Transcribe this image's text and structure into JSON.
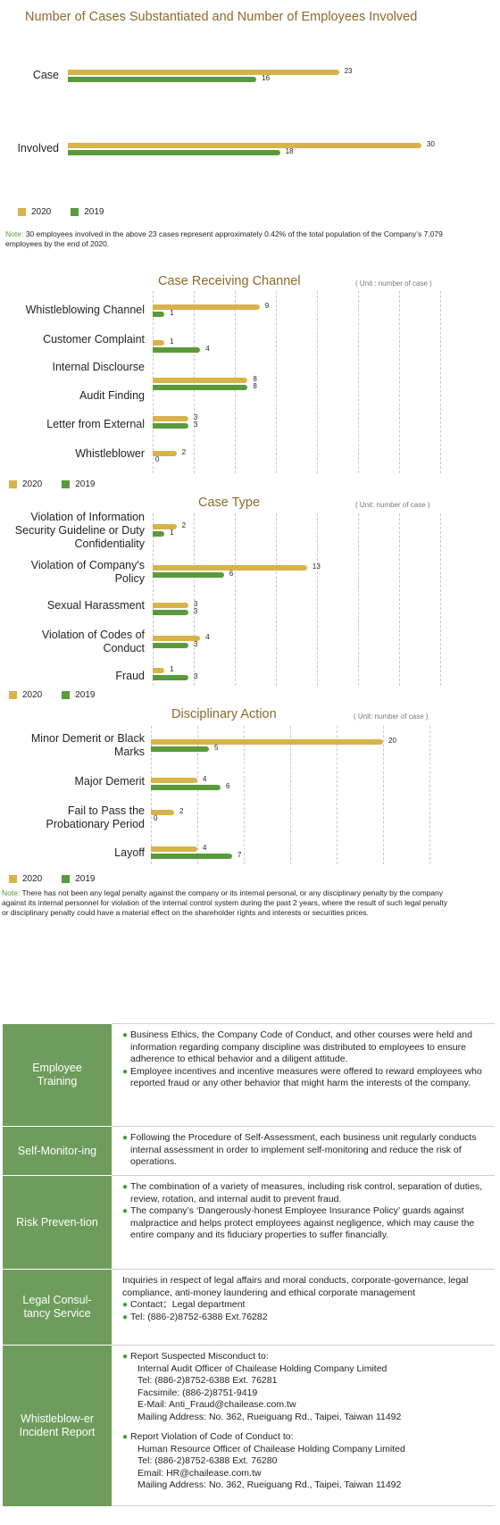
{
  "chart_data": [
    {
      "type": "bar",
      "title": "Number of Cases Substantiated and Number of Employees Involved",
      "categories": [
        "Case",
        "Involved"
      ],
      "series": [
        {
          "name": "2020",
          "values": [
            23,
            30
          ]
        },
        {
          "name": "2019",
          "values": [
            16,
            18
          ]
        }
      ],
      "colors": {
        "2020": "#d8b24b",
        "2019": "#5a9a3c"
      }
    },
    {
      "type": "bar",
      "title": "Case Receiving Channel",
      "unit": "( Unit : number of case )",
      "categories": [
        "Whistleblowing Channel",
        "Customer Complaint",
        "Internal Disclourse",
        "Audit Finding",
        "Letter from External",
        "Whistleblower"
      ],
      "series": [
        {
          "name": "2020",
          "values": [
            9,
            1,
            null,
            8,
            3,
            2
          ]
        },
        {
          "name": "2019",
          "values": [
            1,
            4,
            null,
            8,
            3,
            0
          ]
        }
      ]
    },
    {
      "type": "bar",
      "title": "Case Type",
      "unit": "( Unit: number of case )",
      "categories": [
        "Violation of Information Security Guideline or Duty Confidentiality",
        "Violation of Company's Policy",
        "Sexual Harassment",
        "Violation of Codes of Conduct",
        "Fraud"
      ],
      "series": [
        {
          "name": "2020",
          "values": [
            2,
            13,
            3,
            4,
            1
          ]
        },
        {
          "name": "2019",
          "values": [
            1,
            6,
            3,
            3,
            3
          ]
        }
      ]
    },
    {
      "type": "bar",
      "title": "Disciplinary Action",
      "unit": "( Unit: number of case )",
      "categories": [
        "Minor Demerit or Black Marks",
        "Major Demerit",
        "Fail to Pass the Probationary Period",
        "Layoff"
      ],
      "series": [
        {
          "name": "2020",
          "values": [
            20,
            4,
            2,
            4
          ]
        },
        {
          "name": "2019",
          "values": [
            5,
            6,
            0,
            7
          ]
        }
      ]
    }
  ],
  "legend": {
    "a": "2020",
    "b": "2019"
  },
  "notes": {
    "label": "Note:",
    "note1": "30 employees involved in the above 23 cases represent approximately 0.42% of the total population of the Company’s 7,079 employees by the end of 2020.",
    "note2": "There has not been any legal penalty against the company or its internal personal, or any disciplinary penalty by the company against its internal personnel for violation of the internal control system during the past 2 years, where the result of such legal penalty or disciplinary penalty could have a material effect on the shareholder rights and interests or securities prices."
  },
  "table": {
    "employee_training": {
      "label": "Employee Training",
      "b1": "Business Ethics, the Company Code of Conduct, and other courses were held and information regarding company discipline was distributed to employees to ensure adherence to ethical behavior and a diligent attitude.",
      "b2": "Employee incentives and incentive measures were offered to reward employees who reported fraud or any other behavior that might harm the interests of the company."
    },
    "self_monitoring": {
      "label": "Self-Monitor-ing",
      "b1": "Following the Procedure of Self-Assessment, each business unit regularly conducts internal assessment in order to implement self-monitoring and reduce the risk of operations."
    },
    "risk_prevention": {
      "label": "Risk Preven-tion",
      "b1": "The combination of a variety of measures, including risk control, separation of duties, review, rotation, and internal audit to prevent fraud.",
      "b2": "The company’s ‘Dangerously-honest Employee Insurance Policy’ guards against malpractice and helps protect employees against negligence, which may cause the entire company and its fiduciary properties to suffer financially."
    },
    "legal": {
      "label": "Legal Consul-tancy Service",
      "intro": "Inquiries in respect of legal affairs and moral conducts, corporate-governance, legal compliance, anti-money laundering and ethical corporate management",
      "b1": "Contact：Legal department",
      "b2": "Tel: (886-2)8752-6388 Ext.76282"
    },
    "whistle": {
      "label": "Whistleblow-er Incident Report",
      "r1_title": "Report Suspected Misconduct to:",
      "r1_l1": "Internal Audit Officer of Chailease Holding Company Limited",
      "r1_l2": "Tel: (886-2)8752-6388 Ext. 76281",
      "r1_l3": "Facsimile: (886-2)8751-9419",
      "r1_l4": "E-Mail: Anti_Fraud@chailease.com.tw",
      "r1_l5": "Mailing Address: No. 362, Rueiguang Rd., Taipei, Taiwan 11492",
      "r2_title": "Report Violation of Code of Conduct to:",
      "r2_l1": "Human Resource Officer of Chailease Holding Company Limited",
      "r2_l2": "Tel: (886-2)8752-6388 Ext. 76280",
      "r2_l3": "Email: HR@chailease.com.tw",
      "r2_l4": "Mailing Address: No. 362, Rueiguang Rd., Taipei, Taiwan 11492"
    }
  }
}
